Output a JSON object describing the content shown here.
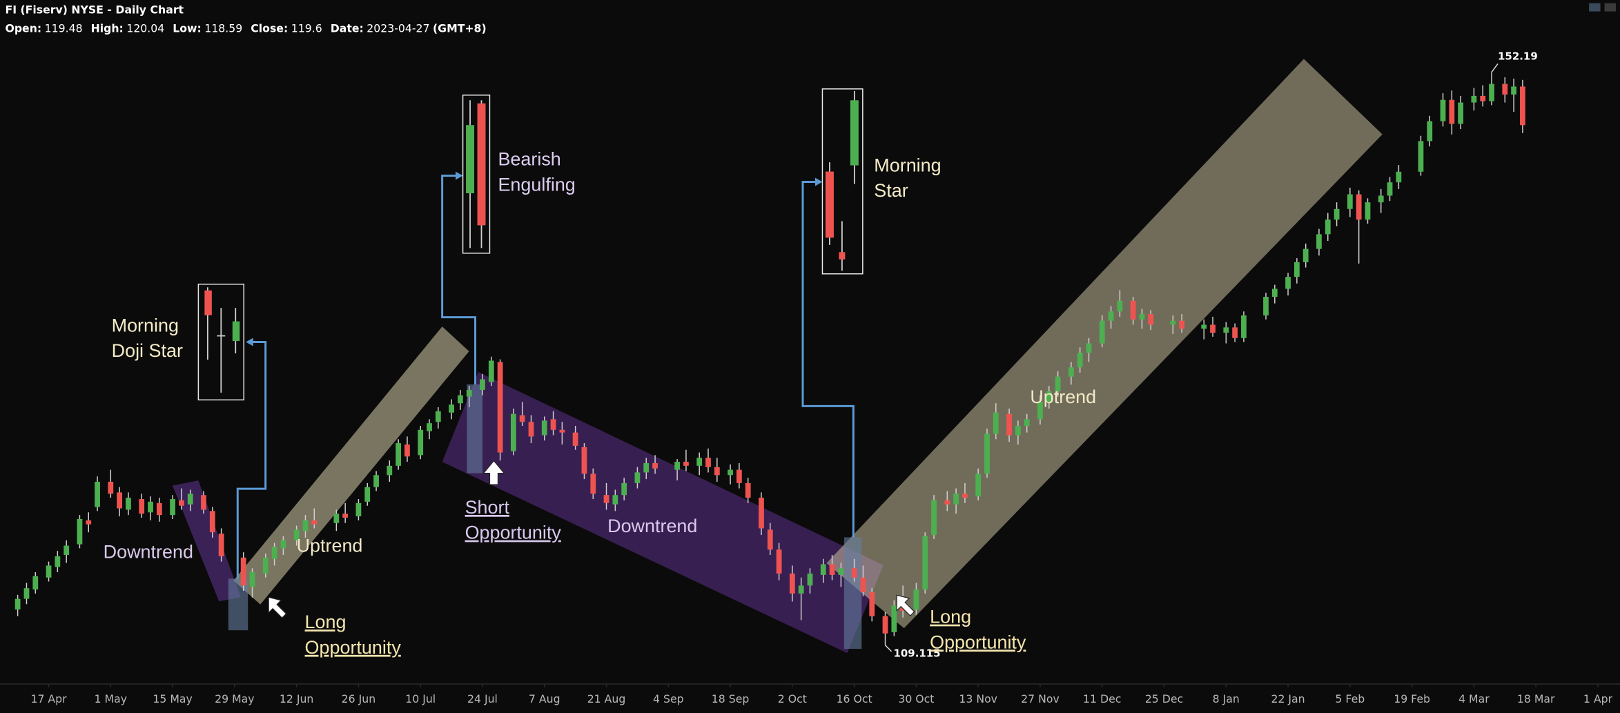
{
  "chart_data": {
    "type": "candlestick",
    "title": "FI (Fiserv) NYSE - Daily Chart",
    "header_items": [
      {
        "label": "Open:",
        "value": 119.48
      },
      {
        "label": "High:",
        "value": 120.04
      },
      {
        "label": "Low:",
        "value": 118.59
      },
      {
        "label": "Close:",
        "value": 119.6
      },
      {
        "label": "Date:",
        "value": "2023-04-27"
      }
    ],
    "timezone": "(GMT+8)",
    "up_color": "#4caf50",
    "down_color": "#ef5350",
    "wick_color": "#d0d0d0",
    "xlim": [
      "2023-04-06",
      "2024-04-06"
    ],
    "ylim": [
      106.2,
      157.6
    ],
    "xticks": [
      {
        "value": "2023-04-17",
        "label": "17 Apr"
      },
      {
        "value": "2023-05-01",
        "label": "1 May"
      },
      {
        "value": "2023-05-15",
        "label": "15 May"
      },
      {
        "value": "2023-05-29",
        "label": "29 May"
      },
      {
        "value": "2023-06-12",
        "label": "12 Jun"
      },
      {
        "value": "2023-06-26",
        "label": "26 Jun"
      },
      {
        "value": "2023-07-10",
        "label": "10 Jul"
      },
      {
        "value": "2023-07-24",
        "label": "24 Jul"
      },
      {
        "value": "2023-08-07",
        "label": "7 Aug"
      },
      {
        "value": "2023-08-21",
        "label": "21 Aug"
      },
      {
        "value": "2023-09-04",
        "label": "4 Sep"
      },
      {
        "value": "2023-09-18",
        "label": "18 Sep"
      },
      {
        "value": "2023-10-02",
        "label": "2 Oct"
      },
      {
        "value": "2023-10-16",
        "label": "16 Oct"
      },
      {
        "value": "2023-10-30",
        "label": "30 Oct"
      },
      {
        "value": "2023-11-13",
        "label": "13 Nov"
      },
      {
        "value": "2023-11-27",
        "label": "27 Nov"
      },
      {
        "value": "2023-12-11",
        "label": "11 Dec"
      },
      {
        "value": "2023-12-25",
        "label": "25 Dec"
      },
      {
        "value": "2024-01-08",
        "label": "8 Jan"
      },
      {
        "value": "2024-01-22",
        "label": "22 Jan"
      },
      {
        "value": "2024-02-05",
        "label": "5 Feb"
      },
      {
        "value": "2024-02-19",
        "label": "19 Feb"
      },
      {
        "value": "2024-03-04",
        "label": "4 Mar"
      },
      {
        "value": "2024-03-18",
        "label": "18 Mar"
      },
      {
        "value": "2024-04-01",
        "label": "1 Apr"
      }
    ],
    "x": [
      "2023-04-10",
      "2023-04-12",
      "2023-04-14",
      "2023-04-17",
      "2023-04-19",
      "2023-04-21",
      "2023-04-24",
      "2023-04-26",
      "2023-04-28",
      "2023-05-01",
      "2023-05-03",
      "2023-05-05",
      "2023-05-08",
      "2023-05-10",
      "2023-05-12",
      "2023-05-15",
      "2023-05-17",
      "2023-05-19",
      "2023-05-22",
      "2023-05-24",
      "2023-05-26",
      "2023-05-31",
      "2023-06-02",
      "2023-06-05",
      "2023-06-07",
      "2023-06-09",
      "2023-06-12",
      "2023-06-14",
      "2023-06-16",
      "2023-06-21",
      "2023-06-23",
      "2023-06-26",
      "2023-06-28",
      "2023-06-30",
      "2023-07-03",
      "2023-07-05",
      "2023-07-07",
      "2023-07-10",
      "2023-07-12",
      "2023-07-14",
      "2023-07-17",
      "2023-07-19",
      "2023-07-21",
      "2023-07-24",
      "2023-07-26",
      "2023-07-28",
      "2023-07-31",
      "2023-08-02",
      "2023-08-04",
      "2023-08-07",
      "2023-08-09",
      "2023-08-11",
      "2023-08-14",
      "2023-08-16",
      "2023-08-18",
      "2023-08-21",
      "2023-08-23",
      "2023-08-25",
      "2023-08-28",
      "2023-08-30",
      "2023-09-01",
      "2023-09-06",
      "2023-09-08",
      "2023-09-11",
      "2023-09-13",
      "2023-09-15",
      "2023-09-18",
      "2023-09-20",
      "2023-09-22",
      "2023-09-25",
      "2023-09-27",
      "2023-09-29",
      "2023-10-02",
      "2023-10-04",
      "2023-10-06",
      "2023-10-09",
      "2023-10-11",
      "2023-10-13",
      "2023-10-16",
      "2023-10-18",
      "2023-10-20",
      "2023-10-23",
      "2023-10-25",
      "2023-10-27",
      "2023-10-30",
      "2023-11-01",
      "2023-11-03",
      "2023-11-06",
      "2023-11-08",
      "2023-11-10",
      "2023-11-13",
      "2023-11-15",
      "2023-11-17",
      "2023-11-20",
      "2023-11-22",
      "2023-11-24",
      "2023-11-27",
      "2023-11-29",
      "2023-12-01",
      "2023-12-04",
      "2023-12-06",
      "2023-12-08",
      "2023-12-11",
      "2023-12-13",
      "2023-12-15",
      "2023-12-18",
      "2023-12-20",
      "2023-12-22",
      "2023-12-27",
      "2023-12-29",
      "2024-01-03",
      "2024-01-05",
      "2024-01-08",
      "2024-01-10",
      "2024-01-12",
      "2024-01-17",
      "2024-01-19",
      "2024-01-22",
      "2024-01-24",
      "2024-01-26",
      "2024-01-29",
      "2024-01-31",
      "2024-02-02",
      "2024-02-05",
      "2024-02-07",
      "2024-02-09",
      "2024-02-12",
      "2024-02-14",
      "2024-02-16",
      "2024-02-21",
      "2024-02-23",
      "2024-02-26",
      "2024-02-28",
      "2024-03-01",
      "2024-03-04",
      "2024-03-06",
      "2024-03-08",
      "2024-03-11",
      "2024-03-13",
      "2024-03-15"
    ],
    "ohlc": [
      [
        111.8,
        112.9,
        111.3,
        112.6
      ],
      [
        112.6,
        113.8,
        112.2,
        113.4
      ],
      [
        113.3,
        114.6,
        113.0,
        114.3
      ],
      [
        114.2,
        115.4,
        113.9,
        115.1
      ],
      [
        115.0,
        116.2,
        114.6,
        115.8
      ],
      [
        115.9,
        117.0,
        115.3,
        116.6
      ],
      [
        116.7,
        118.9,
        116.4,
        118.6
      ],
      [
        118.5,
        119.1,
        117.6,
        118.2
      ],
      [
        119.5,
        121.8,
        119.2,
        121.4
      ],
      [
        121.4,
        122.3,
        120.2,
        120.5
      ],
      [
        120.6,
        121.0,
        118.8,
        119.4
      ],
      [
        119.3,
        120.6,
        118.9,
        120.2
      ],
      [
        120.1,
        120.5,
        118.7,
        119.0
      ],
      [
        119.1,
        120.3,
        118.5,
        119.9
      ],
      [
        119.8,
        120.2,
        118.4,
        118.9
      ],
      [
        118.9,
        120.4,
        118.6,
        120.1
      ],
      [
        120.0,
        120.9,
        119.3,
        119.6
      ],
      [
        119.7,
        120.8,
        119.2,
        120.5
      ],
      [
        120.4,
        120.7,
        119.0,
        119.3
      ],
      [
        119.2,
        119.5,
        117.2,
        117.6
      ],
      [
        117.5,
        117.9,
        115.4,
        115.8
      ],
      [
        115.7,
        116.1,
        113.2,
        113.6
      ],
      [
        113.5,
        114.9,
        112.7,
        114.6
      ],
      [
        114.5,
        116.0,
        114.2,
        115.7
      ],
      [
        115.6,
        116.8,
        115.1,
        116.5
      ],
      [
        116.4,
        117.3,
        115.9,
        117.0
      ],
      [
        117.0,
        118.1,
        116.6,
        117.8
      ],
      [
        117.7,
        118.9,
        117.2,
        118.5
      ],
      [
        118.5,
        119.4,
        117.9,
        118.2
      ],
      [
        118.3,
        119.3,
        117.7,
        119.0
      ],
      [
        119.0,
        119.8,
        118.3,
        118.7
      ],
      [
        118.8,
        120.1,
        118.5,
        119.8
      ],
      [
        119.9,
        121.3,
        119.6,
        121.0
      ],
      [
        121.0,
        122.2,
        120.7,
        121.9
      ],
      [
        121.9,
        123.0,
        121.4,
        122.6
      ],
      [
        122.6,
        124.6,
        122.3,
        124.3
      ],
      [
        124.2,
        124.8,
        122.9,
        123.3
      ],
      [
        123.4,
        125.6,
        123.1,
        125.3
      ],
      [
        125.2,
        126.1,
        124.6,
        125.8
      ],
      [
        125.9,
        127.0,
        125.4,
        126.7
      ],
      [
        126.6,
        127.6,
        126.1,
        127.2
      ],
      [
        127.3,
        128.3,
        126.8,
        127.9
      ],
      [
        127.8,
        128.6,
        127.0,
        128.3
      ],
      [
        128.3,
        129.5,
        127.9,
        129.1
      ],
      [
        128.9,
        130.8,
        128.6,
        130.5
      ],
      [
        130.4,
        130.6,
        123.0,
        123.6
      ],
      [
        123.7,
        126.9,
        123.4,
        126.5
      ],
      [
        126.4,
        127.4,
        125.6,
        125.9
      ],
      [
        125.9,
        126.4,
        124.3,
        124.8
      ],
      [
        124.9,
        126.3,
        124.5,
        126.0
      ],
      [
        126.1,
        126.7,
        124.9,
        125.3
      ],
      [
        125.3,
        125.9,
        124.2,
        125.1
      ],
      [
        125.1,
        125.6,
        123.8,
        124.1
      ],
      [
        124.0,
        124.3,
        121.6,
        122.0
      ],
      [
        122.0,
        122.4,
        120.1,
        120.5
      ],
      [
        120.4,
        121.3,
        119.3,
        119.8
      ],
      [
        119.7,
        120.8,
        119.2,
        120.4
      ],
      [
        120.4,
        121.7,
        120.0,
        121.3
      ],
      [
        121.3,
        122.5,
        120.9,
        122.1
      ],
      [
        122.1,
        123.2,
        121.6,
        122.8
      ],
      [
        122.8,
        123.4,
        122.0,
        122.4
      ],
      [
        122.3,
        123.1,
        121.5,
        122.9
      ],
      [
        122.9,
        123.8,
        122.2,
        122.6
      ],
      [
        122.6,
        123.6,
        121.9,
        123.2
      ],
      [
        123.2,
        123.9,
        122.1,
        122.5
      ],
      [
        122.5,
        123.2,
        121.4,
        121.9
      ],
      [
        121.9,
        122.7,
        121.2,
        122.3
      ],
      [
        122.3,
        122.8,
        120.9,
        121.3
      ],
      [
        121.3,
        121.7,
        119.8,
        120.2
      ],
      [
        120.2,
        120.6,
        117.4,
        117.9
      ],
      [
        117.8,
        118.3,
        115.9,
        116.3
      ],
      [
        116.3,
        116.8,
        114.0,
        114.5
      ],
      [
        114.5,
        115.1,
        112.4,
        113.0
      ],
      [
        113.0,
        114.2,
        111.0,
        113.6
      ],
      [
        113.6,
        114.9,
        113.0,
        114.5
      ],
      [
        114.4,
        115.6,
        113.8,
        115.2
      ],
      [
        115.2,
        115.9,
        114.0,
        114.4
      ],
      [
        114.4,
        115.3,
        113.5,
        114.9
      ],
      [
        114.9,
        115.6,
        113.9,
        114.2
      ],
      [
        114.2,
        115.1,
        112.8,
        113.1
      ],
      [
        113.1,
        113.4,
        110.9,
        111.3
      ],
      [
        111.3,
        111.6,
        109.115,
        110.0
      ],
      [
        110.1,
        112.5,
        109.8,
        112.1
      ],
      [
        112.1,
        113.6,
        111.2,
        111.7
      ],
      [
        111.8,
        113.8,
        111.4,
        113.3
      ],
      [
        113.3,
        117.6,
        113.0,
        117.3
      ],
      [
        117.4,
        120.4,
        117.1,
        120.0
      ],
      [
        120.0,
        120.7,
        119.2,
        119.7
      ],
      [
        119.7,
        120.9,
        119.0,
        120.5
      ],
      [
        120.5,
        121.3,
        119.8,
        120.2
      ],
      [
        120.3,
        122.4,
        120.0,
        122.0
      ],
      [
        122.0,
        125.4,
        121.7,
        125.0
      ],
      [
        125.0,
        127.3,
        124.6,
        126.6
      ],
      [
        126.5,
        126.9,
        124.4,
        124.9
      ],
      [
        124.9,
        126.0,
        124.2,
        125.6
      ],
      [
        125.6,
        126.5,
        125.1,
        126.1
      ],
      [
        126.1,
        127.9,
        125.7,
        127.4
      ],
      [
        127.4,
        128.6,
        126.9,
        128.2
      ],
      [
        128.2,
        129.7,
        127.8,
        129.3
      ],
      [
        129.3,
        130.4,
        128.7,
        130.0
      ],
      [
        130.0,
        131.5,
        129.6,
        131.1
      ],
      [
        131.1,
        132.2,
        130.4,
        131.8
      ],
      [
        131.8,
        133.9,
        131.5,
        133.5
      ],
      [
        133.5,
        134.6,
        132.9,
        134.2
      ],
      [
        134.2,
        135.8,
        133.8,
        135.0
      ],
      [
        135.0,
        135.3,
        133.2,
        133.6
      ],
      [
        133.6,
        134.4,
        132.9,
        134.0
      ],
      [
        134.0,
        134.3,
        132.8,
        133.2
      ],
      [
        133.2,
        133.9,
        132.5,
        133.5
      ],
      [
        133.5,
        134.0,
        132.6,
        132.9
      ],
      [
        132.9,
        133.6,
        132.1,
        133.2
      ],
      [
        133.2,
        133.8,
        132.3,
        132.6
      ],
      [
        132.6,
        133.4,
        131.8,
        133.0
      ],
      [
        133.0,
        133.3,
        131.9,
        132.2
      ],
      [
        132.2,
        134.2,
        131.9,
        133.9
      ],
      [
        133.9,
        135.6,
        133.6,
        135.3
      ],
      [
        135.3,
        136.2,
        134.8,
        135.9
      ],
      [
        135.9,
        137.1,
        135.4,
        136.8
      ],
      [
        136.8,
        138.2,
        136.3,
        137.9
      ],
      [
        137.9,
        139.3,
        137.5,
        138.9
      ],
      [
        138.9,
        140.4,
        138.4,
        140.0
      ],
      [
        140.0,
        141.6,
        139.5,
        141.1
      ],
      [
        141.1,
        142.4,
        140.6,
        141.9
      ],
      [
        141.9,
        143.5,
        141.3,
        143.0
      ],
      [
        143.0,
        143.3,
        137.8,
        141.1
      ],
      [
        141.1,
        142.7,
        140.8,
        142.4
      ],
      [
        142.4,
        143.4,
        141.6,
        142.9
      ],
      [
        142.9,
        144.3,
        142.5,
        143.9
      ],
      [
        143.9,
        145.2,
        143.4,
        144.7
      ],
      [
        144.7,
        147.4,
        144.4,
        147.0
      ],
      [
        147.0,
        148.9,
        146.6,
        148.5
      ],
      [
        148.5,
        150.6,
        148.1,
        150.1
      ],
      [
        150.1,
        150.8,
        147.5,
        148.3
      ],
      [
        148.3,
        150.4,
        147.9,
        149.9
      ],
      [
        149.9,
        151.0,
        149.3,
        150.4
      ],
      [
        150.4,
        151.2,
        149.6,
        150.0
      ],
      [
        150.0,
        152.19,
        149.7,
        151.3
      ],
      [
        151.3,
        151.8,
        149.9,
        150.5
      ],
      [
        150.5,
        151.7,
        149.2,
        151.1
      ],
      [
        151.1,
        151.6,
        147.6,
        148.2
      ]
    ],
    "annotations": [
      {
        "lines": [
          "Downtrend"
        ]
      },
      {
        "lines": [
          "Uptrend"
        ]
      },
      {
        "lines": [
          "Morning",
          "Doji Star"
        ]
      },
      {
        "lines": [
          "Long",
          "Opportunity"
        ]
      },
      {
        "lines": [
          "Bearish",
          "Engulfing"
        ]
      },
      {
        "lines": [
          "Short",
          "Opportunity"
        ]
      },
      {
        "lines": [
          "Downtrend"
        ]
      },
      {
        "lines": [
          "Morning",
          "Star"
        ]
      },
      {
        "lines": [
          "Uptrend"
        ]
      },
      {
        "lines": [
          "Long",
          "Opportunity"
        ]
      }
    ]
  }
}
